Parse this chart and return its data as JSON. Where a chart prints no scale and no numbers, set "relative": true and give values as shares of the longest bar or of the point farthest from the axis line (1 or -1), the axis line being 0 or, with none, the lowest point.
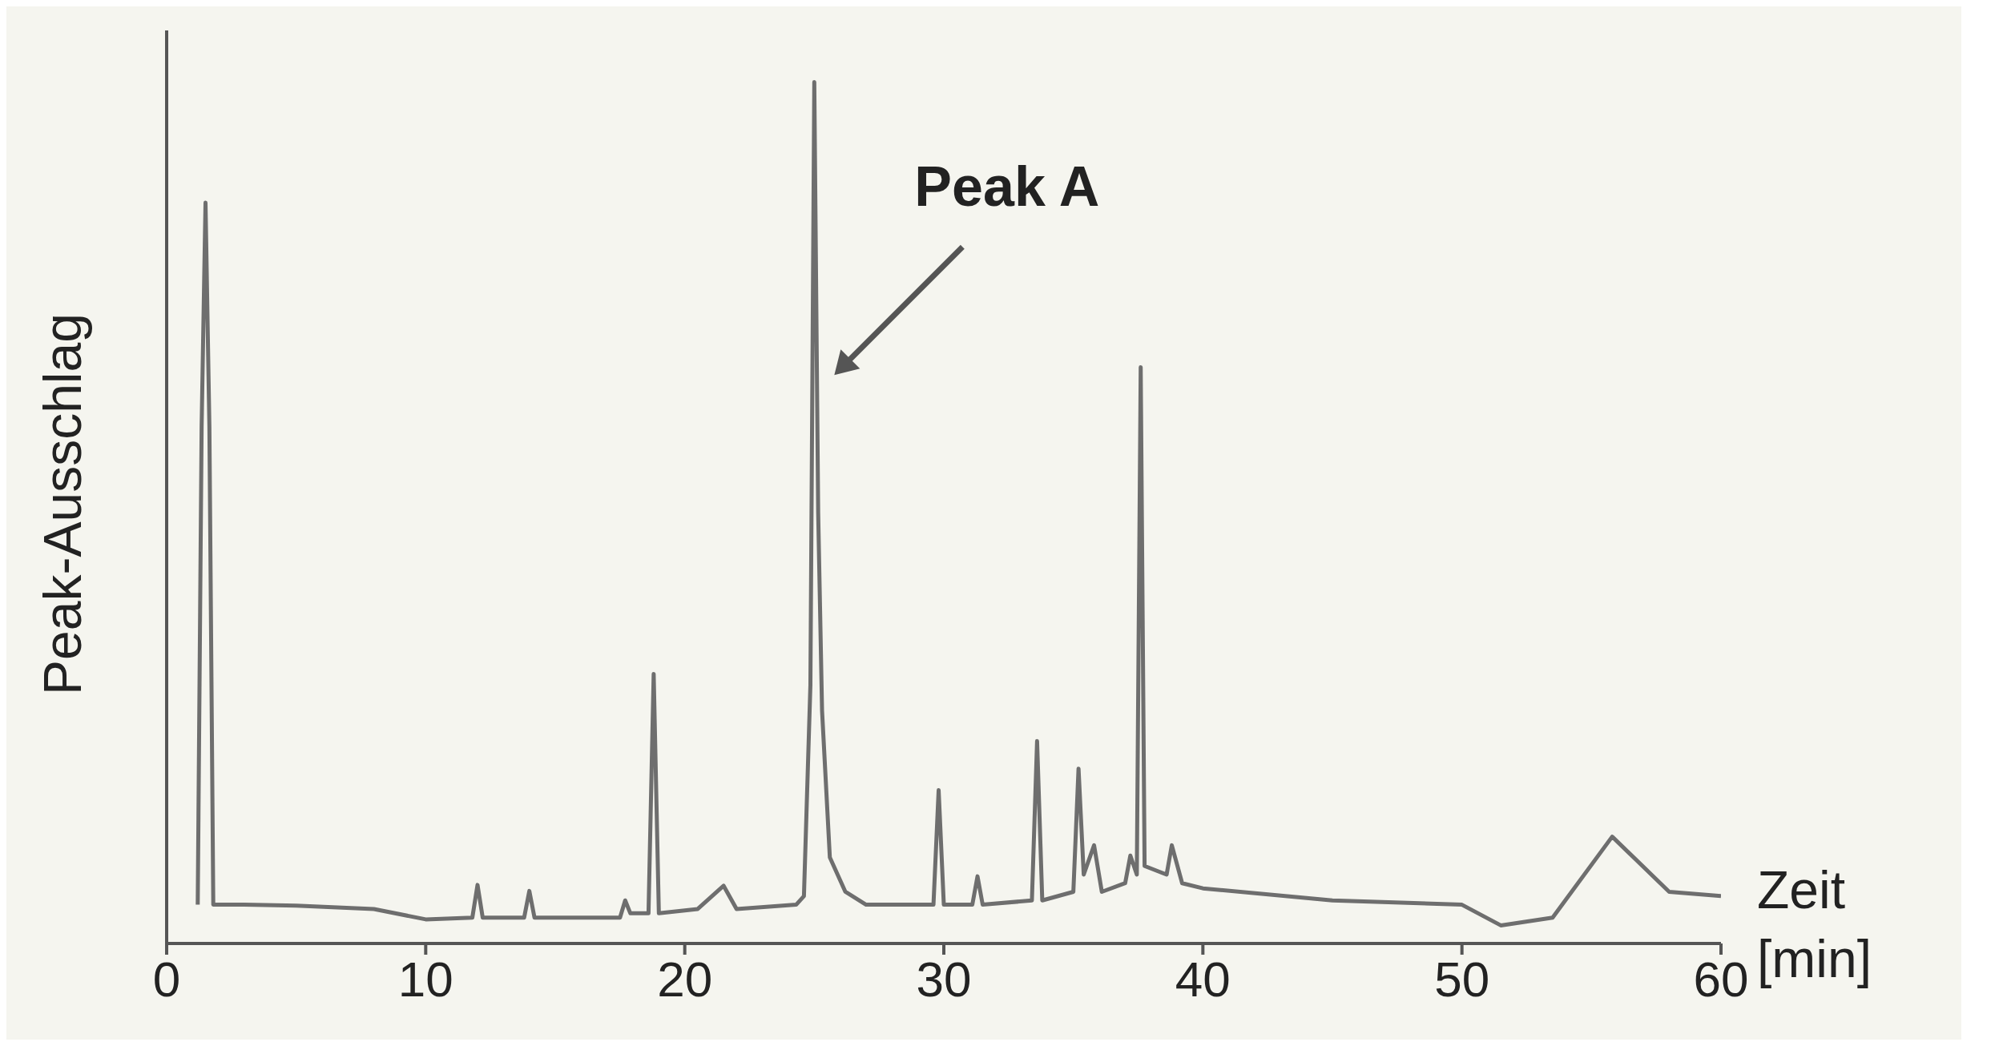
{
  "chart_data": {
    "type": "line",
    "relative": true,
    "xlabel": "Zeit [min]",
    "ylabel": "Peak-Ausschlag",
    "xlim": [
      0,
      60
    ],
    "xticks": [
      0,
      10,
      20,
      30,
      40,
      50,
      60
    ],
    "marker": "none",
    "line_style": "solid",
    "annotations": [
      "Peak A"
    ],
    "x": [
      1.2,
      1.35,
      1.5,
      1.65,
      1.8,
      3,
      5,
      8,
      10,
      11.8,
      12,
      12.2,
      13.8,
      14,
      14.2,
      17.5,
      17.7,
      17.9,
      18.6,
      18.8,
      19,
      20.5,
      21.5,
      22,
      24.3,
      24.6,
      24.85,
      25,
      25.15,
      25.3,
      25.6,
      26.2,
      27,
      29.6,
      29.8,
      30,
      31.1,
      31.3,
      31.5,
      33.4,
      33.6,
      33.8,
      35,
      35.2,
      35.4,
      35.8,
      36.1,
      37,
      37.2,
      37.45,
      37.6,
      37.75,
      38.6,
      38.8,
      39.2,
      40,
      45,
      50,
      51.5,
      53.5,
      55.8,
      58,
      60
    ],
    "series": [
      {
        "color": "#6e6e6e",
        "values": [
          0.045,
          0.6,
          0.86,
          0.6,
          0.045,
          0.045,
          0.044,
          0.04,
          0.028,
          0.03,
          0.068,
          0.03,
          0.03,
          0.061,
          0.03,
          0.03,
          0.05,
          0.035,
          0.035,
          0.313,
          0.035,
          0.04,
          0.067,
          0.04,
          0.045,
          0.055,
          0.3,
          1.0,
          0.5,
          0.27,
          0.1,
          0.06,
          0.045,
          0.045,
          0.178,
          0.045,
          0.045,
          0.078,
          0.045,
          0.05,
          0.235,
          0.05,
          0.06,
          0.203,
          0.08,
          0.114,
          0.06,
          0.07,
          0.102,
          0.08,
          0.669,
          0.09,
          0.08,
          0.114,
          0.07,
          0.064,
          0.05,
          0.045,
          0.021,
          0.03,
          0.124,
          0.06,
          0.055
        ]
      }
    ]
  }
}
